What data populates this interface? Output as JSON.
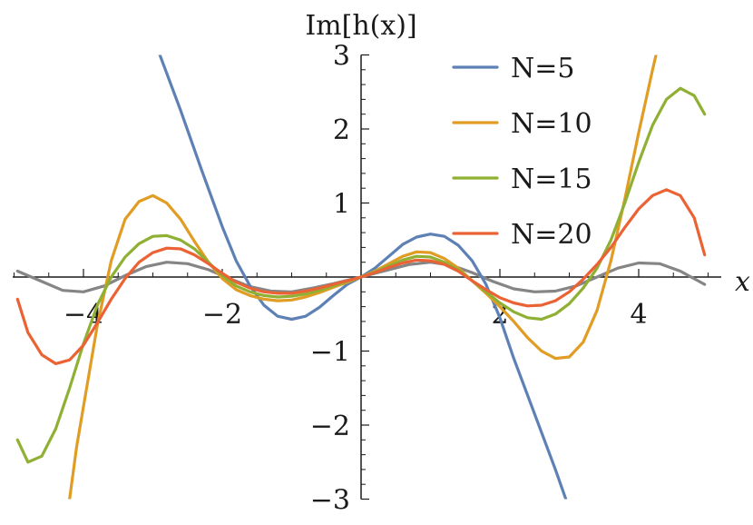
{
  "chart_data": {
    "type": "line",
    "xlabel": "x",
    "ylabel": "Im[h(x)]",
    "xlim": [
      -5,
      5
    ],
    "ylim": [
      -3,
      3
    ],
    "x_ticks": [
      -4,
      -2,
      2,
      4
    ],
    "x_tick_labels": [
      "−4",
      "−2",
      "2",
      "4"
    ],
    "y_ticks": [
      -3,
      -2,
      -1,
      1,
      2,
      3
    ],
    "y_tick_labels": [
      "−3",
      "−2",
      "−1",
      "1",
      "2",
      "3"
    ],
    "legend_position": "top-right",
    "grid": false,
    "series": [
      {
        "name": "N=5",
        "color": "#5e81b5",
        "points": [
          [
            -2.9,
            3.0
          ],
          [
            -2.6,
            2.25
          ],
          [
            -2.3,
            1.45
          ],
          [
            -2.0,
            0.68
          ],
          [
            -1.8,
            0.22
          ],
          [
            -1.6,
            -0.12
          ],
          [
            -1.4,
            -0.38
          ],
          [
            -1.2,
            -0.53
          ],
          [
            -1.0,
            -0.57
          ],
          [
            -0.8,
            -0.53
          ],
          [
            -0.6,
            -0.41
          ],
          [
            -0.4,
            -0.25
          ],
          [
            -0.2,
            -0.1
          ],
          [
            0.0,
            0.0
          ],
          [
            0.2,
            0.12
          ],
          [
            0.4,
            0.28
          ],
          [
            0.6,
            0.44
          ],
          [
            0.8,
            0.54
          ],
          [
            1.0,
            0.58
          ],
          [
            1.2,
            0.55
          ],
          [
            1.4,
            0.43
          ],
          [
            1.6,
            0.22
          ],
          [
            1.8,
            -0.1
          ],
          [
            2.0,
            -0.55
          ],
          [
            2.2,
            -1.1
          ],
          [
            2.5,
            -1.85
          ],
          [
            2.8,
            -2.6
          ],
          [
            2.95,
            -3.0
          ]
        ]
      },
      {
        "name": "N=10",
        "color": "#e19c24",
        "points": [
          [
            -4.2,
            -3.0
          ],
          [
            -4.1,
            -2.3
          ],
          [
            -4.0,
            -1.75
          ],
          [
            -3.8,
            -0.65
          ],
          [
            -3.6,
            0.22
          ],
          [
            -3.4,
            0.78
          ],
          [
            -3.2,
            1.02
          ],
          [
            -3.0,
            1.1
          ],
          [
            -2.8,
            1.0
          ],
          [
            -2.6,
            0.78
          ],
          [
            -2.4,
            0.48
          ],
          [
            -2.2,
            0.2
          ],
          [
            -2.0,
            -0.02
          ],
          [
            -1.8,
            -0.17
          ],
          [
            -1.6,
            -0.25
          ],
          [
            -1.4,
            -0.3
          ],
          [
            -1.2,
            -0.32
          ],
          [
            -1.0,
            -0.31
          ],
          [
            -0.8,
            -0.27
          ],
          [
            -0.6,
            -0.21
          ],
          [
            -0.4,
            -0.14
          ],
          [
            -0.2,
            -0.07
          ],
          [
            0.0,
            0.0
          ],
          [
            0.2,
            0.08
          ],
          [
            0.4,
            0.18
          ],
          [
            0.6,
            0.28
          ],
          [
            0.8,
            0.34
          ],
          [
            1.0,
            0.33
          ],
          [
            1.2,
            0.25
          ],
          [
            1.4,
            0.12
          ],
          [
            1.6,
            -0.05
          ],
          [
            1.8,
            -0.22
          ],
          [
            2.0,
            -0.4
          ],
          [
            2.2,
            -0.6
          ],
          [
            2.4,
            -0.82
          ],
          [
            2.6,
            -1.0
          ],
          [
            2.8,
            -1.1
          ],
          [
            3.0,
            -1.08
          ],
          [
            3.2,
            -0.88
          ],
          [
            3.4,
            -0.45
          ],
          [
            3.6,
            0.22
          ],
          [
            3.8,
            1.05
          ],
          [
            4.0,
            1.95
          ],
          [
            4.2,
            2.8
          ],
          [
            4.25,
            3.0
          ]
        ]
      },
      {
        "name": "N=15",
        "color": "#8fb032",
        "points": [
          [
            -4.95,
            -2.2
          ],
          [
            -4.8,
            -2.5
          ],
          [
            -4.6,
            -2.42
          ],
          [
            -4.4,
            -2.05
          ],
          [
            -4.2,
            -1.5
          ],
          [
            -4.0,
            -0.9
          ],
          [
            -3.8,
            -0.38
          ],
          [
            -3.6,
            0.0
          ],
          [
            -3.4,
            0.27
          ],
          [
            -3.2,
            0.45
          ],
          [
            -3.0,
            0.55
          ],
          [
            -2.8,
            0.56
          ],
          [
            -2.6,
            0.5
          ],
          [
            -2.4,
            0.38
          ],
          [
            -2.2,
            0.2
          ],
          [
            -2.0,
            0.02
          ],
          [
            -1.8,
            -0.12
          ],
          [
            -1.6,
            -0.2
          ],
          [
            -1.4,
            -0.25
          ],
          [
            -1.2,
            -0.27
          ],
          [
            -1.0,
            -0.26
          ],
          [
            -0.8,
            -0.23
          ],
          [
            -0.6,
            -0.18
          ],
          [
            -0.4,
            -0.12
          ],
          [
            -0.2,
            -0.06
          ],
          [
            0.0,
            0.0
          ],
          [
            0.2,
            0.07
          ],
          [
            0.4,
            0.15
          ],
          [
            0.6,
            0.23
          ],
          [
            0.8,
            0.28
          ],
          [
            1.0,
            0.27
          ],
          [
            1.2,
            0.2
          ],
          [
            1.4,
            0.1
          ],
          [
            1.6,
            -0.05
          ],
          [
            1.8,
            -0.2
          ],
          [
            2.0,
            -0.35
          ],
          [
            2.2,
            -0.47
          ],
          [
            2.4,
            -0.55
          ],
          [
            2.6,
            -0.57
          ],
          [
            2.8,
            -0.5
          ],
          [
            3.0,
            -0.36
          ],
          [
            3.2,
            -0.15
          ],
          [
            3.4,
            0.12
          ],
          [
            3.6,
            0.5
          ],
          [
            3.8,
            1.0
          ],
          [
            4.0,
            1.55
          ],
          [
            4.2,
            2.05
          ],
          [
            4.4,
            2.4
          ],
          [
            4.6,
            2.55
          ],
          [
            4.8,
            2.45
          ],
          [
            4.95,
            2.2
          ]
        ]
      },
      {
        "name": "N=20",
        "color": "#eb6235",
        "points": [
          [
            -4.95,
            -0.3
          ],
          [
            -4.8,
            -0.75
          ],
          [
            -4.6,
            -1.05
          ],
          [
            -4.4,
            -1.17
          ],
          [
            -4.2,
            -1.12
          ],
          [
            -4.0,
            -0.92
          ],
          [
            -3.8,
            -0.62
          ],
          [
            -3.6,
            -0.3
          ],
          [
            -3.4,
            -0.02
          ],
          [
            -3.2,
            0.2
          ],
          [
            -3.0,
            0.33
          ],
          [
            -2.8,
            0.39
          ],
          [
            -2.6,
            0.38
          ],
          [
            -2.4,
            0.3
          ],
          [
            -2.2,
            0.18
          ],
          [
            -2.0,
            0.05
          ],
          [
            -1.8,
            -0.07
          ],
          [
            -1.6,
            -0.15
          ],
          [
            -1.4,
            -0.2
          ],
          [
            -1.2,
            -0.22
          ],
          [
            -1.0,
            -0.22
          ],
          [
            -0.8,
            -0.19
          ],
          [
            -0.6,
            -0.15
          ],
          [
            -0.4,
            -0.1
          ],
          [
            -0.2,
            -0.05
          ],
          [
            0.0,
            0.0
          ],
          [
            0.2,
            0.06
          ],
          [
            0.4,
            0.13
          ],
          [
            0.6,
            0.19
          ],
          [
            0.8,
            0.23
          ],
          [
            1.0,
            0.22
          ],
          [
            1.2,
            0.17
          ],
          [
            1.4,
            0.08
          ],
          [
            1.6,
            -0.05
          ],
          [
            1.8,
            -0.17
          ],
          [
            2.0,
            -0.28
          ],
          [
            2.2,
            -0.35
          ],
          [
            2.4,
            -0.39
          ],
          [
            2.6,
            -0.38
          ],
          [
            2.8,
            -0.32
          ],
          [
            3.0,
            -0.2
          ],
          [
            3.2,
            -0.03
          ],
          [
            3.4,
            0.17
          ],
          [
            3.6,
            0.4
          ],
          [
            3.8,
            0.67
          ],
          [
            4.0,
            0.92
          ],
          [
            4.2,
            1.1
          ],
          [
            4.4,
            1.18
          ],
          [
            4.6,
            1.1
          ],
          [
            4.8,
            0.8
          ],
          [
            4.95,
            0.3
          ]
        ]
      },
      {
        "name": "",
        "color": "#858585",
        "points": [
          [
            -4.95,
            0.08
          ],
          [
            -4.6,
            -0.06
          ],
          [
            -4.3,
            -0.18
          ],
          [
            -4.0,
            -0.2
          ],
          [
            -3.7,
            -0.12
          ],
          [
            -3.4,
            0.02
          ],
          [
            -3.1,
            0.14
          ],
          [
            -2.8,
            0.2
          ],
          [
            -2.5,
            0.18
          ],
          [
            -2.2,
            0.1
          ],
          [
            -1.9,
            -0.02
          ],
          [
            -1.6,
            -0.13
          ],
          [
            -1.3,
            -0.19
          ],
          [
            -1.0,
            -0.2
          ],
          [
            -0.7,
            -0.15
          ],
          [
            -0.4,
            -0.09
          ],
          [
            0.0,
            0.0
          ],
          [
            0.4,
            0.1
          ],
          [
            0.7,
            0.17
          ],
          [
            1.0,
            0.2
          ],
          [
            1.3,
            0.16
          ],
          [
            1.6,
            0.06
          ],
          [
            1.9,
            -0.06
          ],
          [
            2.2,
            -0.16
          ],
          [
            2.5,
            -0.2
          ],
          [
            2.8,
            -0.19
          ],
          [
            3.1,
            -0.12
          ],
          [
            3.4,
            0.0
          ],
          [
            3.7,
            0.12
          ],
          [
            4.0,
            0.19
          ],
          [
            4.3,
            0.18
          ],
          [
            4.6,
            0.08
          ],
          [
            4.95,
            -0.1
          ]
        ]
      }
    ]
  }
}
